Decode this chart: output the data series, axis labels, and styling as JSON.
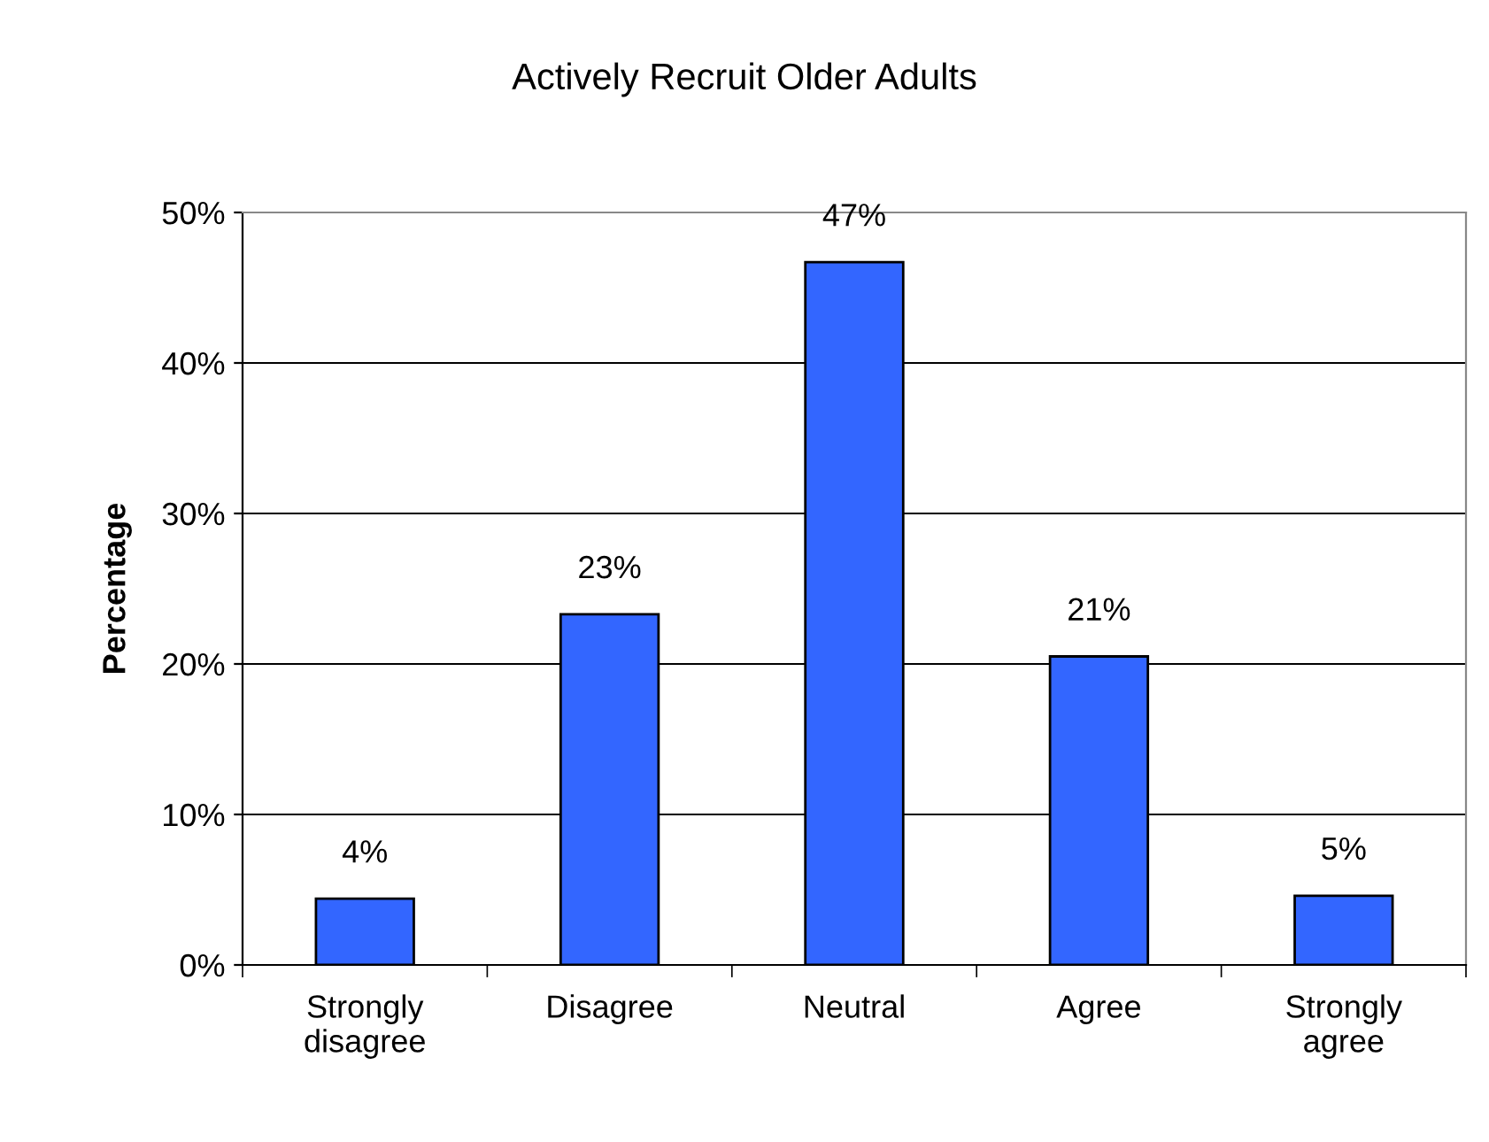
{
  "chart_data": {
    "type": "bar",
    "title": "Actively Recruit Older Adults",
    "ylabel": "Percentage",
    "categories": [
      "Strongly\ndisagree",
      "Disagree",
      "Neutral",
      "Agree",
      "Strongly\nagree"
    ],
    "values": [
      4.4,
      23.3,
      46.7,
      20.5,
      4.6
    ],
    "value_labels": [
      "4%",
      "23%",
      "47%",
      "21%",
      "5%"
    ],
    "color": "#3366ff",
    "ylim": [
      0,
      50
    ],
    "yticks": [
      {
        "value": 0,
        "label": "0%"
      },
      {
        "value": 10,
        "label": "10%"
      },
      {
        "value": 20,
        "label": "20%"
      },
      {
        "value": 30,
        "label": "30%"
      },
      {
        "value": 40,
        "label": "40%"
      },
      {
        "value": 50,
        "label": "50%"
      }
    ],
    "grid": "y",
    "legend": false
  }
}
